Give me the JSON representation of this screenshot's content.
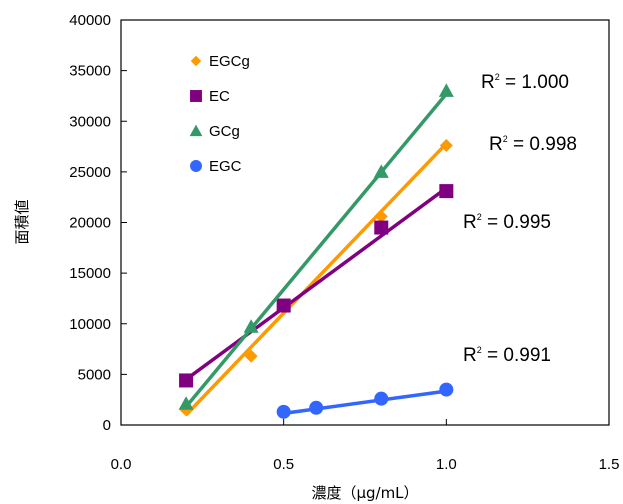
{
  "chart_data": {
    "type": "scatter",
    "xlabel": "濃度（μg/mL）",
    "ylabel": "面積値",
    "xlim": [
      0,
      1.5
    ],
    "ylim": [
      0,
      40000
    ],
    "x_ticks": [
      "0.0",
      "0.5",
      "1.0",
      "1.5"
    ],
    "y_ticks": [
      "0",
      "5000",
      "10000",
      "15000",
      "20000",
      "25000",
      "30000",
      "35000",
      "40000"
    ],
    "grid": false,
    "legend_placement": "top-left",
    "series": [
      {
        "name": "EGCg",
        "marker": "diamond",
        "color": "#FF9900",
        "x": [
          0.2,
          0.4,
          0.8,
          1.0
        ],
        "y": [
          1500,
          6800,
          20600,
          27600
        ],
        "fit": {
          "x": [
            0.2,
            1.0
          ],
          "y": [
            1000,
            27800
          ]
        },
        "r2_label": "R² = 0.998"
      },
      {
        "name": "EC",
        "marker": "square",
        "color": "#800080",
        "x": [
          0.2,
          0.5,
          0.8,
          1.0
        ],
        "y": [
          4400,
          11800,
          19500,
          23100
        ],
        "fit": {
          "x": [
            0.2,
            1.0
          ],
          "y": [
            4500,
            23400
          ]
        },
        "r2_label": "R² = 0.995"
      },
      {
        "name": "GCg",
        "marker": "triangle",
        "color": "#339966",
        "x": [
          0.2,
          0.4,
          0.8,
          1.0
        ],
        "y": [
          2100,
          9700,
          25000,
          33000
        ],
        "fit": {
          "x": [
            0.2,
            1.0
          ],
          "y": [
            1800,
            32700
          ]
        },
        "r2_label": "R² = 1.000"
      },
      {
        "name": "EGC",
        "marker": "circle",
        "color": "#3366FF",
        "x": [
          0.5,
          0.6,
          0.8,
          1.0
        ],
        "y": [
          1300,
          1700,
          2600,
          3500
        ],
        "fit": {
          "x": [
            0.5,
            1.0
          ],
          "y": [
            1150,
            3350
          ]
        },
        "r2_label": "R² = 0.991"
      }
    ]
  }
}
